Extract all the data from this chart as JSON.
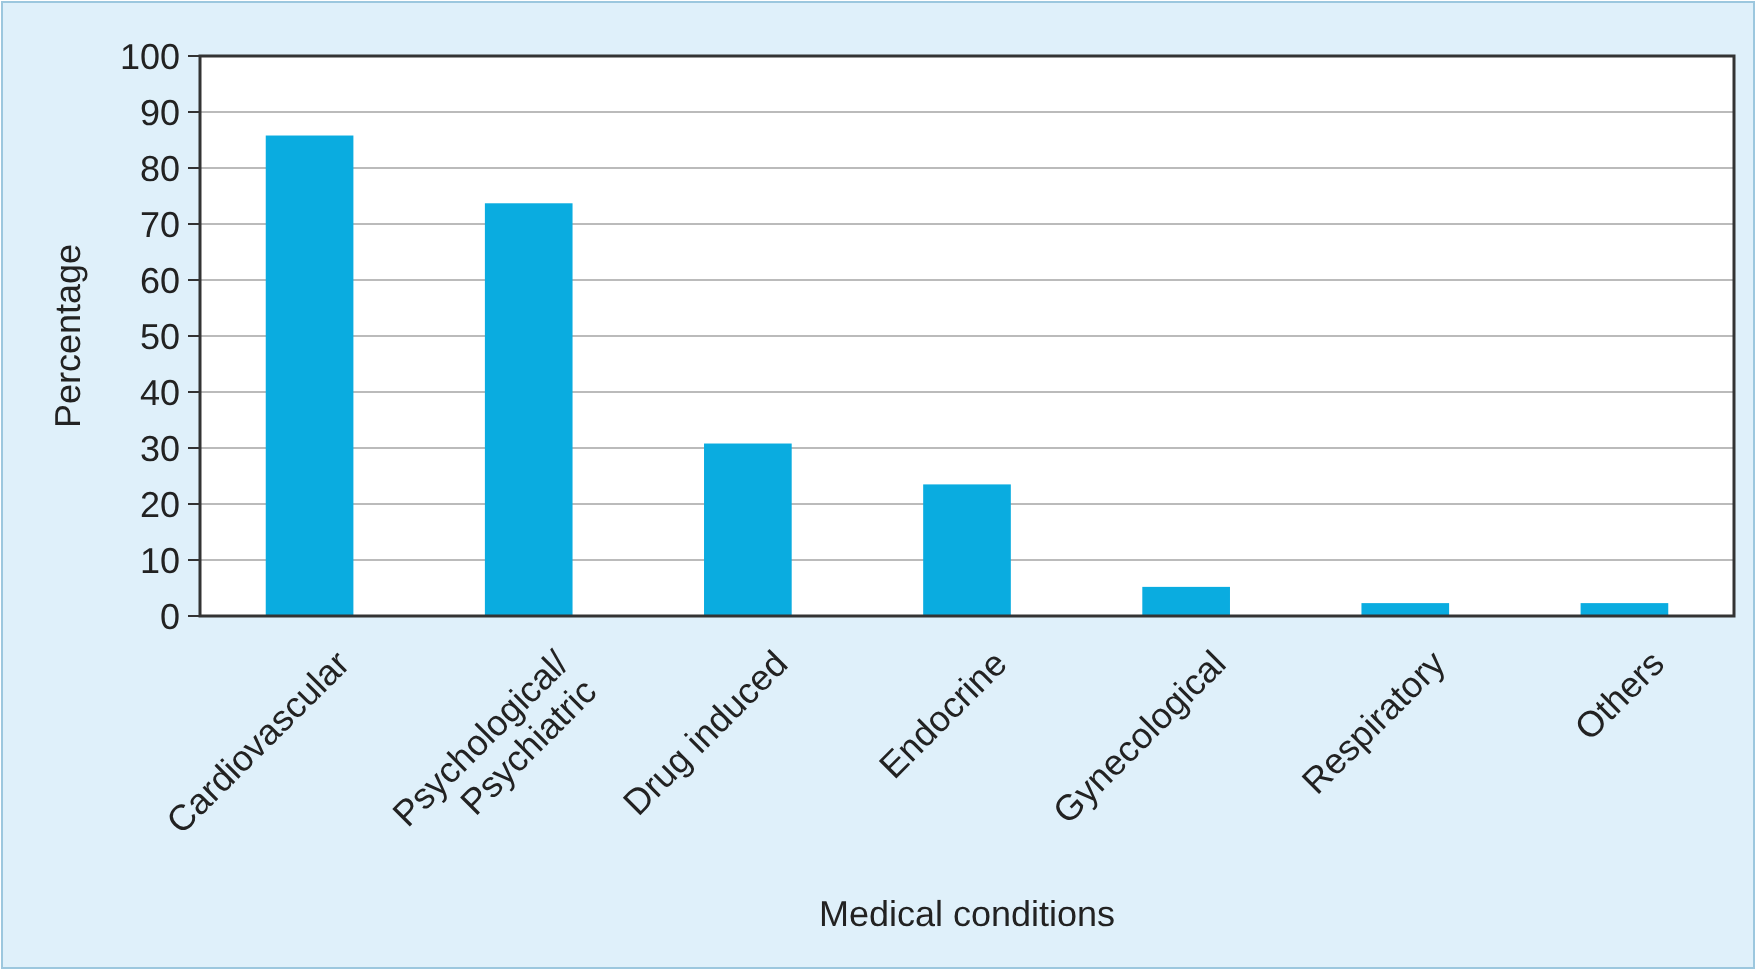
{
  "chart_data": {
    "type": "bar",
    "xlabel": "Medical conditions",
    "ylabel": "Percentage",
    "categories": [
      "Cardiovascular",
      "Psychological/\nPsychiatric",
      "Drug induced",
      "Endocrine",
      "Gynecological",
      "Respiratory",
      "Others"
    ],
    "values": [
      85.8,
      73.7,
      30.8,
      23.5,
      5.2,
      2.3,
      2.3
    ],
    "color": "#0aace0",
    "ylim": [
      0,
      100
    ],
    "yticks": [
      0,
      10,
      20,
      30,
      40,
      50,
      60,
      70,
      80,
      90,
      100
    ],
    "grid": "y"
  }
}
